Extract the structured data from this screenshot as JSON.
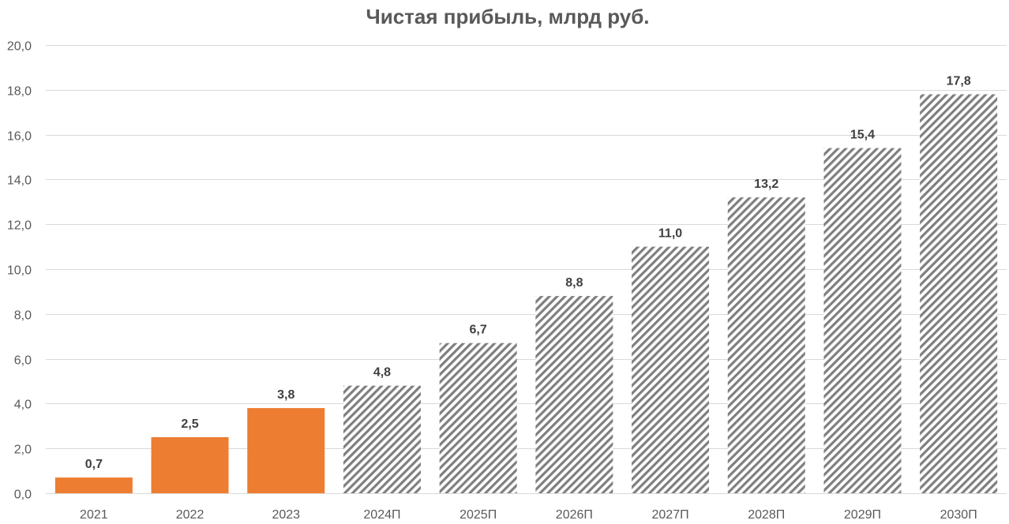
{
  "chart_data": {
    "type": "bar",
    "title": "Чистая прибыль, млрд руб.",
    "xlabel": "",
    "ylabel": "",
    "ylim": [
      0,
      20
    ],
    "ytick_step": 2,
    "ytick_labels": [
      "0,0",
      "2,0",
      "4,0",
      "6,0",
      "8,0",
      "10,0",
      "12,0",
      "14,0",
      "16,0",
      "18,0",
      "20,0"
    ],
    "grid": true,
    "categories": [
      "2021",
      "2022",
      "2023",
      "2024П",
      "2025П",
      "2026П",
      "2027П",
      "2028П",
      "2029П",
      "2030П"
    ],
    "values": [
      0.7,
      2.5,
      3.8,
      4.8,
      6.7,
      8.8,
      11.0,
      13.2,
      15.4,
      17.8
    ],
    "data_labels": [
      "0,7",
      "2,5",
      "3,8",
      "4,8",
      "6,7",
      "8,8",
      "11,0",
      "13,2",
      "15,4",
      "17,8"
    ],
    "bar_style": [
      "actual",
      "actual",
      "actual",
      "forecast",
      "forecast",
      "forecast",
      "forecast",
      "forecast",
      "forecast",
      "forecast"
    ],
    "colors": {
      "actual": "#ed7d31",
      "forecast_hatch": "#7f7f7f",
      "grid": "#d9d9d9"
    }
  }
}
